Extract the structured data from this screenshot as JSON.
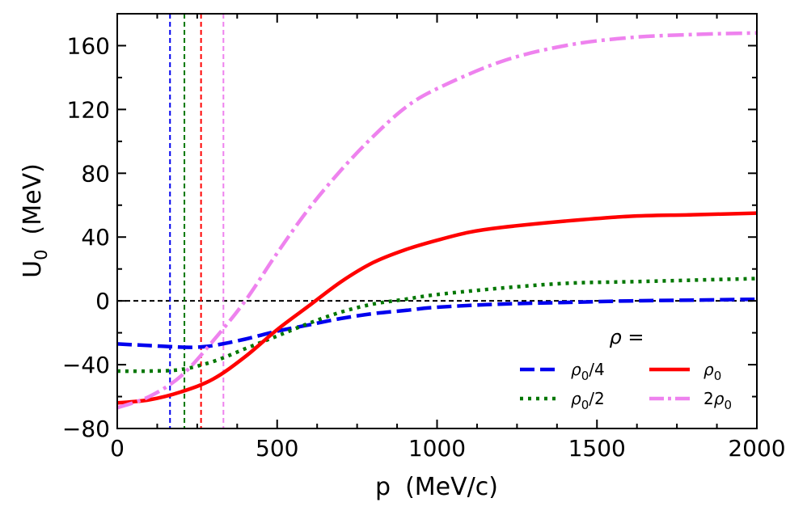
{
  "chart_data": {
    "type": "line",
    "xlabel_main": "p",
    "xlabel_unit": "(MeV/c)",
    "ylabel_main": "U",
    "ylabel_sub": "0",
    "ylabel_unit": "(MeV)",
    "xlim": [
      0,
      2000
    ],
    "ylim": [
      -80,
      180
    ],
    "xticks": [
      0,
      500,
      1000,
      1500,
      2000
    ],
    "xtick_labels": [
      "0",
      "500",
      "1000",
      "1500",
      "2000"
    ],
    "yticks": [
      -80,
      -40,
      0,
      40,
      80,
      120,
      160
    ],
    "ytick_labels": [
      "−80",
      "−40",
      "0",
      "40",
      "80",
      "120",
      "160"
    ],
    "grid": false,
    "legend_placement": "bottom-right",
    "legend_title": "ρ =",
    "zero_line": {
      "y": 0,
      "color": "#000000",
      "style": "dashed"
    },
    "series": [
      {
        "name": "ρ0/4",
        "name_base": "ρ",
        "name_sub": "0",
        "name_suffix": "/4",
        "name_prefix": "",
        "color": "#0000ee",
        "style": "dashed",
        "vline_x": 165,
        "x": [
          0,
          100,
          200,
          250,
          300,
          400,
          500,
          600,
          700,
          800,
          900,
          1000,
          1200,
          1400,
          1600,
          1800,
          2000
        ],
        "y": [
          -27,
          -28,
          -29,
          -29,
          -28,
          -24,
          -19,
          -15,
          -11,
          -8,
          -6,
          -4,
          -2,
          -1,
          0,
          0.5,
          1
        ]
      },
      {
        "name": "ρ0/2",
        "name_base": "ρ",
        "name_sub": "0",
        "name_suffix": "/2",
        "name_prefix": "",
        "color": "#007700",
        "style": "dotted",
        "vline_x": 210,
        "x": [
          0,
          100,
          200,
          300,
          400,
          500,
          600,
          700,
          800,
          900,
          1000,
          1200,
          1400,
          1600,
          1800,
          2000
        ],
        "y": [
          -44,
          -44,
          -43,
          -38,
          -30,
          -22,
          -14,
          -7,
          -2,
          1,
          4,
          8,
          11,
          12,
          13,
          14
        ]
      },
      {
        "name": "ρ0",
        "name_base": "ρ",
        "name_sub": "0",
        "name_suffix": "",
        "name_prefix": "",
        "color": "#ff0000",
        "style": "solid",
        "vline_x": 262,
        "x": [
          0,
          100,
          200,
          300,
          400,
          500,
          600,
          700,
          800,
          900,
          1000,
          1100,
          1200,
          1400,
          1600,
          1800,
          2000
        ],
        "y": [
          -64,
          -62,
          -57,
          -49,
          -35,
          -18,
          -3,
          12,
          24,
          32,
          38,
          43,
          46,
          50,
          53,
          54,
          55
        ]
      },
      {
        "name": "2ρ0",
        "name_base": "ρ",
        "name_sub": "0",
        "name_suffix": "",
        "name_prefix": "2",
        "color": "#ee82ee",
        "style": "dashdot",
        "vline_x": 332,
        "x": [
          0,
          100,
          200,
          300,
          400,
          500,
          600,
          700,
          800,
          900,
          1000,
          1200,
          1400,
          1600,
          1800,
          2000
        ],
        "y": [
          -67,
          -60,
          -47,
          -25,
          0,
          30,
          58,
          82,
          103,
          121,
          133,
          150,
          160,
          165,
          167,
          168
        ]
      }
    ]
  }
}
